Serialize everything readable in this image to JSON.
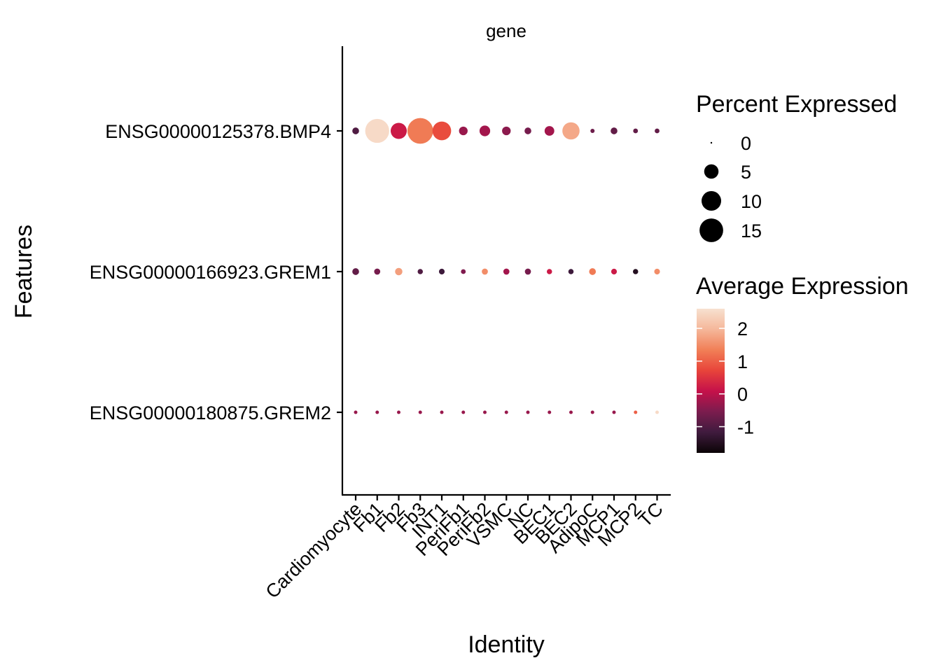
{
  "chart_data": {
    "type": "dotplot",
    "facet_label": "gene",
    "xlabel": "Identity",
    "ylabel": "Features",
    "categories": [
      "Cardiomyocyte",
      "Fb1",
      "Fb2",
      "Fb3",
      "INT1",
      "PeriFb1",
      "PeriFb2",
      "VSMC",
      "NC",
      "BEC1",
      "BEC2",
      "AdipoC",
      "MCP1",
      "MCP2",
      "TC"
    ],
    "features": [
      "ENSG00000125378.BMP4",
      "ENSG00000166923.GREM1",
      "ENSG00000180875.GREM2"
    ],
    "series": [
      {
        "feature": "ENSG00000125378.BMP4",
        "percent_expressed": [
          0.8,
          15.5,
          6.5,
          18.0,
          9.0,
          1.5,
          2.5,
          1.5,
          0.8,
          2.0,
          7.5,
          0.2,
          0.8,
          0.3,
          0.3
        ],
        "average_expression": [
          -1.0,
          2.5,
          0.2,
          1.3,
          0.8,
          -0.3,
          -0.2,
          -0.4,
          -0.6,
          -0.2,
          1.8,
          -0.7,
          -0.8,
          -0.8,
          -0.8
        ]
      },
      {
        "feature": "ENSG00000166923.GREM1",
        "percent_expressed": [
          0.8,
          0.6,
          1.0,
          0.4,
          0.5,
          0.3,
          0.6,
          0.6,
          0.6,
          0.4,
          0.4,
          0.8,
          0.5,
          0.4,
          0.5
        ],
        "average_expression": [
          -0.8,
          -0.6,
          1.7,
          -1.0,
          -1.2,
          -0.5,
          1.5,
          -0.2,
          -0.6,
          0.2,
          -1.2,
          1.3,
          0.2,
          -1.5,
          1.5
        ]
      },
      {
        "feature": "ENSG00000180875.GREM2",
        "percent_expressed": [
          0.1,
          0.1,
          0.1,
          0.1,
          0.1,
          0.1,
          0.1,
          0.1,
          0.1,
          0.1,
          0.1,
          0.1,
          0.1,
          0.1,
          0.1
        ],
        "average_expression": [
          -0.3,
          -0.3,
          -0.3,
          -0.3,
          -0.3,
          -0.3,
          -0.3,
          -0.3,
          -0.3,
          -0.3,
          -0.3,
          -0.3,
          -0.3,
          1.0,
          2.5
        ]
      }
    ],
    "size_legend": {
      "title": "Percent Expressed",
      "values": [
        0,
        5,
        10,
        15
      ],
      "labels": [
        "0",
        "5",
        "10",
        "15"
      ]
    },
    "color_legend": {
      "title": "Average Expression",
      "range": [
        -1.8,
        2.6
      ],
      "ticks": [
        2,
        1,
        0,
        -1
      ],
      "tick_labels": [
        "2",
        "1",
        "0",
        "-1"
      ],
      "colors": [
        "#0b0405",
        "#3f1b3e",
        "#7b1c4e",
        "#c5114a",
        "#e8443a",
        "#f17f57",
        "#f5b79a",
        "#f7e1d0"
      ]
    },
    "grid": false,
    "legend_position": "right"
  }
}
